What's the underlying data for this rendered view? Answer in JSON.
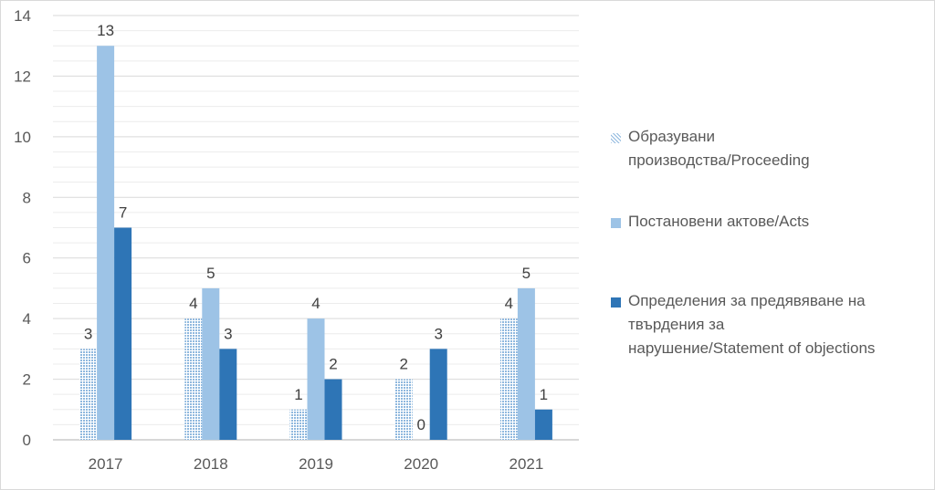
{
  "chart_data": {
    "type": "bar",
    "categories": [
      "2017",
      "2018",
      "2019",
      "2020",
      "2021"
    ],
    "series": [
      {
        "name": "Образувани производства/Proceeding",
        "values": [
          3,
          4,
          1,
          2,
          4
        ],
        "color": "#9dc3e6",
        "pattern": "dotted"
      },
      {
        "name": "Постановени актове/Acts",
        "values": [
          13,
          5,
          4,
          0,
          5
        ],
        "color": "#9dc3e6",
        "pattern": "solid"
      },
      {
        "name": "Определения за предявяване на твърдения за нарушение/Statement of objections",
        "values": [
          7,
          3,
          2,
          3,
          1
        ],
        "color": "#2e75b6",
        "pattern": "solid"
      }
    ],
    "yticks": [
      "0",
      "2",
      "4",
      "6",
      "8",
      "10",
      "12",
      "14"
    ],
    "ylim": [
      0,
      14
    ],
    "grid": true,
    "legend_position": "right",
    "title": "",
    "xlabel": "",
    "ylabel": ""
  },
  "legend": {
    "items": [
      {
        "lines": [
          "Образувани",
          "производства/Proceeding"
        ]
      },
      {
        "lines": [
          "Постановени актове/Acts"
        ]
      },
      {
        "lines": [
          "Определения за предявяване на",
          "твърдения за",
          "нарушение/Statement of objections"
        ]
      }
    ]
  }
}
